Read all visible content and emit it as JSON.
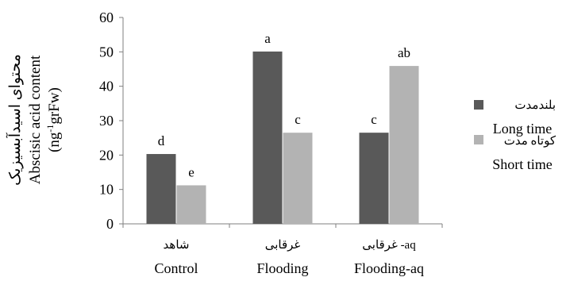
{
  "chart_data": {
    "type": "bar",
    "categories": [
      {
        "fa": "شاهد",
        "en": "Control"
      },
      {
        "fa": "غرقابی",
        "en": "Flooding"
      },
      {
        "fa": "غرقابی -aq",
        "en": "Flooding-aq"
      }
    ],
    "series": [
      {
        "name_fa": "بلندمدت",
        "name_en": "Long time",
        "color": "#595959",
        "values": [
          20.3,
          50.1,
          26.5
        ],
        "letters": [
          "d",
          "a",
          "c"
        ]
      },
      {
        "name_fa": "کوتاه مدت",
        "name_en": "Short time",
        "color": "#b3b3b3",
        "values": [
          11.2,
          26.5,
          45.9
        ],
        "letters": [
          "e",
          "c",
          "ab"
        ]
      }
    ],
    "ylabel_fa": "محتوای اسیدآبسیزیک",
    "ylabel_en_line1": "Abscisic acid content",
    "ylabel_en_line2_pre": "(ng",
    "ylabel_en_line2_sup": "-1",
    "ylabel_en_line2_post": "grFw)",
    "ylim": [
      0,
      60
    ],
    "yticks": [
      0,
      10,
      20,
      30,
      40,
      50,
      60
    ],
    "grid": false,
    "legend_position": "right"
  }
}
